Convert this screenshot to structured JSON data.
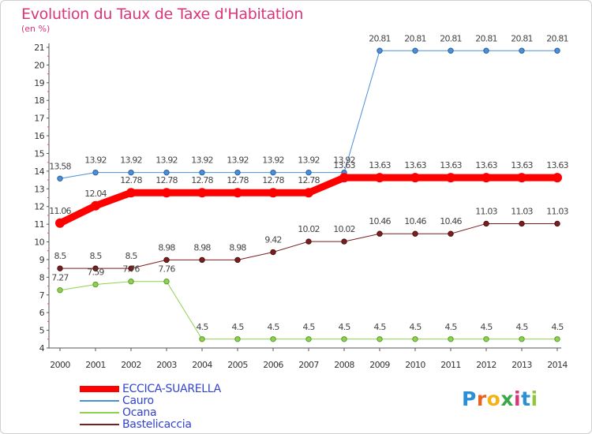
{
  "title": "Evolution du Taux de Taxe d'Habitation",
  "subtitle": "(en %)",
  "logo": {
    "letters": [
      "P",
      "r",
      "o",
      "x",
      "i",
      "t",
      "i"
    ],
    "colors": [
      "#2b8fd6",
      "#e8641e",
      "#f2b318",
      "#3aa84a",
      "#d9367a",
      "#2b8fd6",
      "#8fc93a"
    ]
  },
  "chart_data": {
    "type": "line",
    "x": [
      2000,
      2001,
      2002,
      2003,
      2004,
      2005,
      2006,
      2007,
      2008,
      2009,
      2010,
      2011,
      2012,
      2013,
      2014
    ],
    "ylim": [
      4,
      21
    ],
    "yticks": [
      4,
      5,
      6,
      7,
      8,
      9,
      10,
      11,
      12,
      13,
      14,
      15,
      16,
      17,
      18,
      19,
      20,
      21
    ],
    "grid": false,
    "legend_position": "bottom-left",
    "series": [
      {
        "name": "ECCICA-SUARELLA",
        "color": "#ff0000",
        "values": [
          11.06,
          12.04,
          12.78,
          12.78,
          12.78,
          12.78,
          12.78,
          12.78,
          13.63,
          13.63,
          13.63,
          13.63,
          13.63,
          13.63,
          13.63
        ],
        "labels": [
          "11.06",
          "12.04",
          "12.78",
          "12.78",
          "12.78",
          "12.78",
          "12.78",
          "12.78",
          "13.63",
          "13.63",
          "13.63",
          "13.63",
          "13.63",
          "13.63",
          "13.63"
        ]
      },
      {
        "name": "Cauro",
        "color": "#4a90d9",
        "values": [
          13.58,
          13.92,
          13.92,
          13.92,
          13.92,
          13.92,
          13.92,
          13.92,
          13.92,
          20.81,
          20.81,
          20.81,
          20.81,
          20.81,
          20.81
        ],
        "labels": [
          "13.58",
          "13.92",
          "13.92",
          "13.92",
          "13.92",
          "13.92",
          "13.92",
          "13.92",
          "13.92",
          "20.81",
          "20.81",
          "20.81",
          "20.81",
          "20.81",
          "20.81"
        ]
      },
      {
        "name": "Ocana",
        "color": "#8fd14f",
        "values": [
          7.27,
          7.59,
          7.76,
          7.76,
          4.5,
          4.5,
          4.5,
          4.5,
          4.5,
          4.5,
          4.5,
          4.5,
          4.5,
          4.5,
          4.5
        ],
        "labels": [
          "7.27",
          "7.59",
          "7.76",
          "7.76",
          "4.5",
          "4.5",
          "4.5",
          "4.5",
          "4.5",
          "4.5",
          "4.5",
          "4.5",
          "4.5",
          "4.5",
          "4.5"
        ]
      },
      {
        "name": "Bastelicaccia",
        "color": "#7a1f1f",
        "values": [
          8.5,
          8.5,
          8.5,
          8.98,
          8.98,
          8.98,
          9.42,
          10.02,
          10.02,
          10.46,
          10.46,
          10.46,
          11.03,
          11.03,
          11.03
        ],
        "labels": [
          "8.5",
          "8.5",
          "8.5",
          "8.98",
          "8.98",
          "8.98",
          "9.42",
          "10.02",
          "10.02",
          "10.46",
          "10.46",
          "10.46",
          "11.03",
          "11.03",
          "11.03"
        ]
      }
    ]
  }
}
